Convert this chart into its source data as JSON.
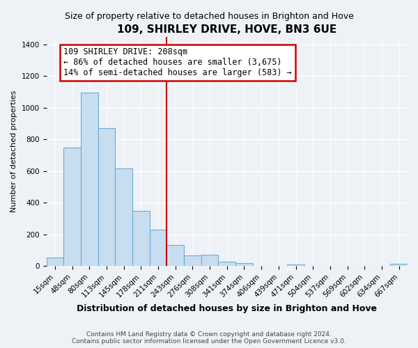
{
  "title": "109, SHIRLEY DRIVE, HOVE, BN3 6UE",
  "subtitle": "Size of property relative to detached houses in Brighton and Hove",
  "xlabel": "Distribution of detached houses by size in Brighton and Hove",
  "ylabel": "Number of detached properties",
  "categories": [
    "15sqm",
    "48sqm",
    "80sqm",
    "113sqm",
    "145sqm",
    "178sqm",
    "211sqm",
    "243sqm",
    "276sqm",
    "308sqm",
    "341sqm",
    "374sqm",
    "406sqm",
    "439sqm",
    "471sqm",
    "504sqm",
    "537sqm",
    "569sqm",
    "602sqm",
    "634sqm",
    "667sqm"
  ],
  "values": [
    55,
    750,
    1095,
    870,
    615,
    350,
    228,
    133,
    68,
    70,
    25,
    20,
    0,
    0,
    10,
    0,
    0,
    0,
    0,
    0,
    15
  ],
  "bar_color": "#c8ddef",
  "bar_edge_color": "#6aadd5",
  "vline_index": 6,
  "vline_color": "#cc0000",
  "annotation_line1": "109 SHIRLEY DRIVE: 208sqm",
  "annotation_line2": "← 86% of detached houses are smaller (3,675)",
  "annotation_line3": "14% of semi-detached houses are larger (583) →",
  "annotation_box_color": "#ffffff",
  "annotation_box_edge": "#cc0000",
  "ylim": [
    0,
    1450
  ],
  "yticks": [
    0,
    200,
    400,
    600,
    800,
    1000,
    1200,
    1400
  ],
  "footer_line1": "Contains HM Land Registry data © Crown copyright and database right 2024.",
  "footer_line2": "Contains public sector information licensed under the Open Government Licence v3.0.",
  "bg_color": "#eef2f7",
  "grid_color": "#ffffff",
  "title_fontsize": 11,
  "subtitle_fontsize": 9,
  "ylabel_fontsize": 8,
  "xlabel_fontsize": 9,
  "tick_fontsize": 7.5,
  "footer_fontsize": 6.5
}
